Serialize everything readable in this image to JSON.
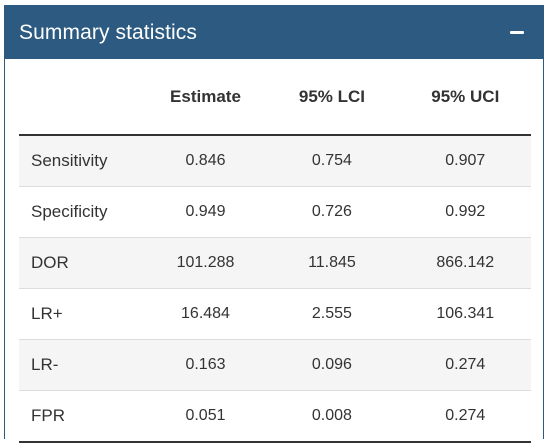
{
  "panel": {
    "title": "Summary statistics",
    "collapse_icon": "minus-icon"
  },
  "table": {
    "columns": [
      "",
      "Estimate",
      "95% LCI",
      "95% UCI"
    ],
    "rows": [
      [
        "Sensitivity",
        "0.846",
        "0.754",
        "0.907"
      ],
      [
        "Specificity",
        "0.949",
        "0.726",
        "0.992"
      ],
      [
        "DOR",
        "101.288",
        "11.845",
        "866.142"
      ],
      [
        "LR+",
        "16.484",
        "2.555",
        "106.341"
      ],
      [
        "LR-",
        "0.163",
        "0.096",
        "0.274"
      ],
      [
        "FPR",
        "0.051",
        "0.008",
        "0.274"
      ]
    ]
  },
  "colors": {
    "header_bg": "#2c5a80",
    "stripe": "#f5f5f5"
  }
}
